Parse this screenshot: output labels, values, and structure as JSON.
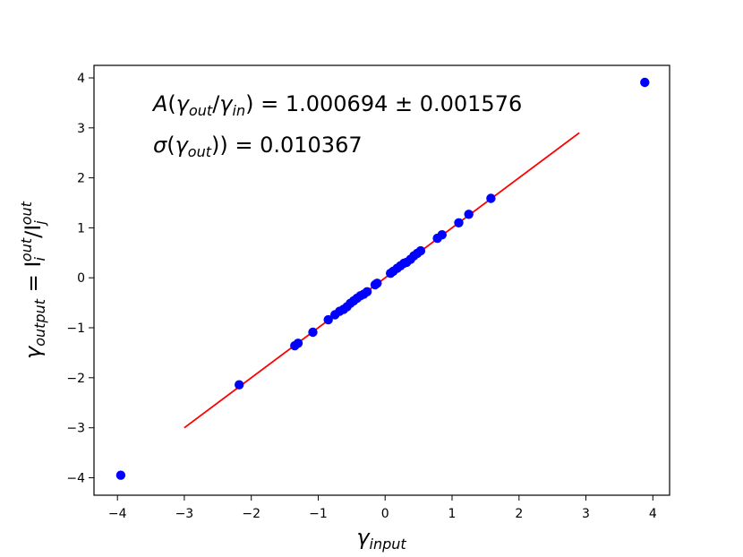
{
  "chart_data": {
    "type": "scatter",
    "title": "",
    "xlabel": {
      "base": "γ",
      "sub": "input"
    },
    "ylabel": {
      "base": "γ",
      "sub": "output",
      "eq": " = I",
      "I1_sub": "i",
      "I1_sup": "out",
      "slash": "/I",
      "I2_sub": "j",
      "I2_sup": "out"
    },
    "xlim": [
      -4.35,
      4.25
    ],
    "ylim": [
      -4.35,
      4.25
    ],
    "xticks": [
      -4,
      -3,
      -2,
      -1,
      0,
      1,
      2,
      3,
      4
    ],
    "yticks": [
      -4,
      -3,
      -2,
      -1,
      0,
      1,
      2,
      3,
      4
    ],
    "xtick_labels": [
      "−4",
      "−3",
      "−2",
      "−1",
      "0",
      "1",
      "2",
      "3",
      "4"
    ],
    "ytick_labels": [
      "−4",
      "−3",
      "−2",
      "−1",
      "0",
      "1",
      "2",
      "3",
      "4"
    ],
    "grid": false,
    "legend": "none",
    "annotations": {
      "line1": {
        "A": "A",
        "open": "(",
        "g1": "γ",
        "g1_sub": "out",
        "slash": "/",
        "g2": "γ",
        "g2_sub": "in",
        "close": ")",
        "value": " = 1.000694 ± 0.001576"
      },
      "line2": {
        "sigma": "σ",
        "open": "(",
        "g": "γ",
        "g_sub": "out",
        "close": "))",
        "value": " = 0.010367"
      }
    },
    "series": [
      {
        "kind": "points",
        "color": "#0000ff",
        "x": [
          -3.95,
          -2.18,
          -1.35,
          -1.3,
          -1.08,
          -0.85,
          -0.75,
          -0.68,
          -0.62,
          -0.57,
          -0.52,
          -0.47,
          -0.42,
          -0.37,
          -0.32,
          -0.27,
          -0.15,
          -0.12,
          0.08,
          0.12,
          0.18,
          0.23,
          0.28,
          0.32,
          0.38,
          0.43,
          0.48,
          0.53,
          0.78,
          0.85,
          1.1,
          1.25,
          1.58,
          3.88
        ],
        "y": [
          -3.95,
          -2.14,
          -1.36,
          -1.31,
          -1.09,
          -0.84,
          -0.74,
          -0.67,
          -0.63,
          -0.58,
          -0.51,
          -0.46,
          -0.41,
          -0.36,
          -0.33,
          -0.28,
          -0.14,
          -0.11,
          0.09,
          0.13,
          0.19,
          0.24,
          0.29,
          0.31,
          0.37,
          0.44,
          0.49,
          0.54,
          0.79,
          0.86,
          1.1,
          1.27,
          1.59,
          3.91
        ]
      },
      {
        "kind": "fit-line",
        "color": "#ff0000",
        "x": [
          -3.0,
          2.9
        ],
        "y": [
          -3.0,
          2.9
        ]
      }
    ]
  }
}
